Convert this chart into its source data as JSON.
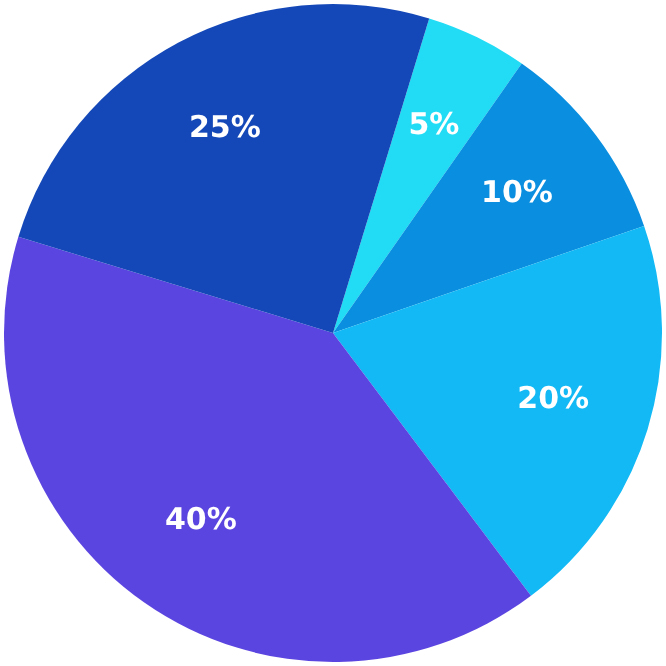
{
  "chart_data": {
    "type": "pie",
    "categories": [
      null,
      null,
      null,
      null,
      null
    ],
    "values": [
      5,
      10,
      20,
      40,
      25
    ],
    "colors": [
      "#22dcf5",
      "#0a8fe0",
      "#12b9f5",
      "#5b45e0",
      "#1448b8"
    ],
    "value_labels": [
      "5%",
      "10%",
      "20%",
      "40%",
      "25%"
    ],
    "legend": false
  }
}
